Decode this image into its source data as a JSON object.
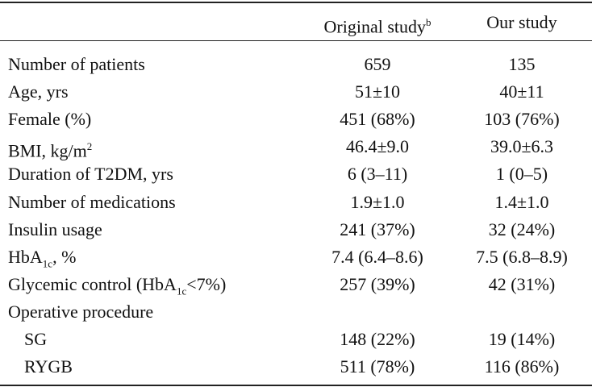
{
  "table": {
    "header": {
      "original": {
        "text": "Original study",
        "sup": "b"
      },
      "ours": "Our study"
    },
    "rows": [
      {
        "label": [
          {
            "text": "Number of patients"
          }
        ],
        "values": [
          "659",
          "135"
        ]
      },
      {
        "label": [
          {
            "text": "Age, yrs"
          }
        ],
        "values": [
          "51±10",
          "40±11"
        ]
      },
      {
        "label": [
          {
            "text": "Female (%)"
          }
        ],
        "values": [
          "451 (68%)",
          "103 (76%)"
        ]
      },
      {
        "label": [
          {
            "text": "BMI, kg/m"
          },
          {
            "sup": "2"
          }
        ],
        "values": [
          "46.4±9.0",
          "39.0±6.3"
        ]
      },
      {
        "label": [
          {
            "text": "Duration of T2DM, yrs"
          }
        ],
        "values": [
          "6 (3–11)",
          "1 (0–5)"
        ]
      },
      {
        "label": [
          {
            "text": "Number of medications"
          }
        ],
        "values": [
          "1.9±1.0",
          "1.4±1.0"
        ]
      },
      {
        "label": [
          {
            "text": "Insulin usage"
          }
        ],
        "values": [
          "241 (37%)",
          "32 (24%)"
        ]
      },
      {
        "label": [
          {
            "text": "HbA"
          },
          {
            "sub": "1c"
          },
          {
            "text": ", %"
          }
        ],
        "values": [
          "7.4 (6.4–8.6)",
          "7.5 (6.8–8.9)"
        ]
      },
      {
        "label": [
          {
            "text": "Glycemic control (HbA"
          },
          {
            "sub": "1c"
          },
          {
            "text": "<7%)"
          }
        ],
        "values": [
          "257 (39%)",
          "42 (31%)"
        ]
      },
      {
        "label": [
          {
            "text": "Operative procedure"
          }
        ]
      },
      {
        "label": [
          {
            "text": "SG"
          }
        ],
        "values": [
          "148 (22%)",
          "19 (14%)"
        ],
        "indent": true
      },
      {
        "label": [
          {
            "text": "RYGB"
          }
        ],
        "values": [
          "511 (78%)",
          "116 (86%)"
        ],
        "indent": true
      }
    ]
  }
}
